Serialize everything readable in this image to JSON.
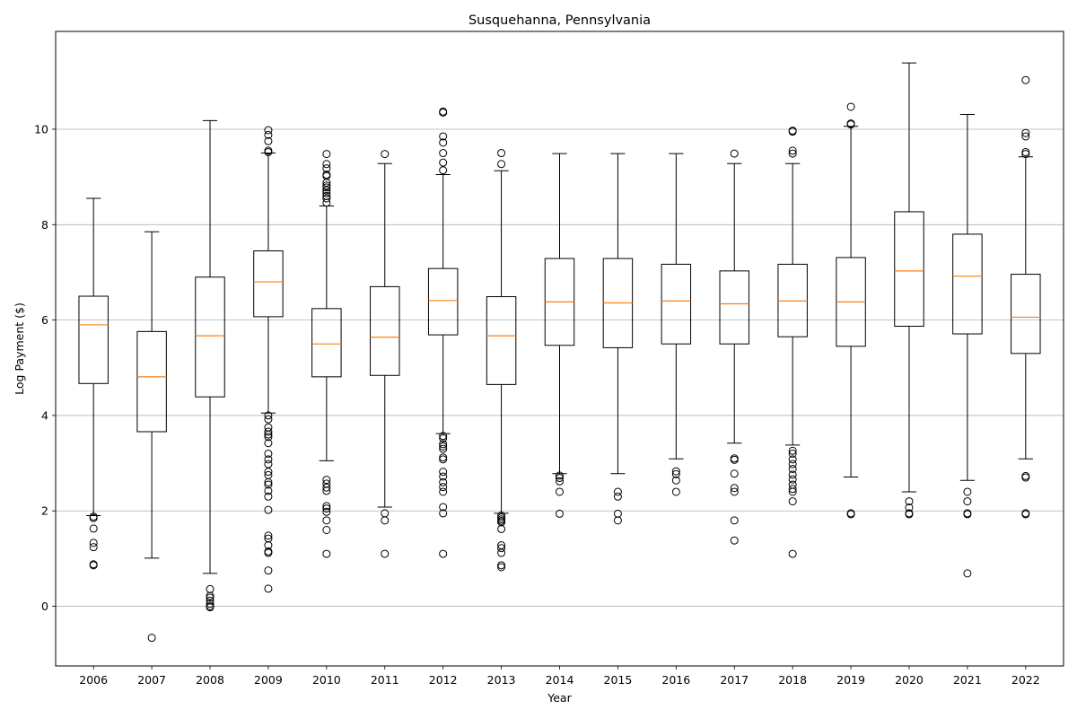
{
  "chart_data": {
    "type": "box",
    "title": "Susquehanna, Pennsylvania",
    "xlabel": "Year",
    "ylabel": "Log Payment ($)",
    "ylim": [
      -1.25,
      12.05
    ],
    "yticks": [
      0,
      2,
      4,
      6,
      8,
      10
    ],
    "ytick_labels": [
      "0",
      "2",
      "4",
      "6",
      "8",
      "10"
    ],
    "grid": "y",
    "box_color": "#000000",
    "median_color": "#ff7f0e",
    "boxes": [
      {
        "label": "2006",
        "whislo": 1.9,
        "q1": 4.67,
        "med": 5.9,
        "q3": 6.5,
        "whishi": 8.55,
        "fliers": [
          1.88,
          1.85,
          1.63,
          1.33,
          1.24,
          0.88,
          0.86
        ]
      },
      {
        "label": "2007",
        "whislo": 1.01,
        "q1": 3.66,
        "med": 4.81,
        "q3": 5.76,
        "whishi": 7.85,
        "fliers": [
          -0.66
        ]
      },
      {
        "label": "2008",
        "whislo": 0.69,
        "q1": 4.39,
        "med": 5.67,
        "q3": 6.9,
        "whishi": 10.18,
        "fliers": [
          0.36,
          0.22,
          0.18,
          0.12,
          0.05,
          0.0,
          -0.02
        ]
      },
      {
        "label": "2009",
        "whislo": 4.05,
        "q1": 6.07,
        "med": 6.8,
        "q3": 7.45,
        "whishi": 9.5,
        "fliers": [
          9.98,
          9.88,
          9.75,
          9.55,
          9.52,
          4.0,
          3.92,
          3.75,
          3.66,
          3.6,
          3.55,
          3.42,
          3.2,
          3.08,
          2.98,
          2.82,
          2.75,
          2.6,
          2.55,
          2.42,
          2.3,
          2.02,
          1.48,
          1.42,
          1.28,
          1.15,
          1.12,
          0.75,
          0.37
        ]
      },
      {
        "label": "2010",
        "whislo": 3.05,
        "q1": 4.81,
        "med": 5.5,
        "q3": 6.24,
        "whishi": 8.39,
        "fliers": [
          9.48,
          9.27,
          9.18,
          9.05,
          9.02,
          8.88,
          8.82,
          8.78,
          8.72,
          8.66,
          8.6,
          8.55,
          8.46,
          2.65,
          2.57,
          2.49,
          2.42,
          2.1,
          2.05,
          1.98,
          1.8,
          1.6,
          1.1
        ]
      },
      {
        "label": "2011",
        "whislo": 2.08,
        "q1": 4.84,
        "med": 5.64,
        "q3": 6.7,
        "whishi": 9.28,
        "fliers": [
          9.48,
          1.95,
          1.8,
          1.1
        ]
      },
      {
        "label": "2012",
        "whislo": 3.62,
        "q1": 5.69,
        "med": 6.41,
        "q3": 7.08,
        "whishi": 9.05,
        "fliers": [
          10.37,
          10.35,
          9.85,
          9.72,
          9.5,
          9.3,
          9.14,
          3.57,
          3.52,
          3.4,
          3.35,
          3.3,
          3.12,
          3.08,
          2.82,
          2.72,
          2.6,
          2.5,
          2.4,
          2.08,
          1.95,
          1.1
        ]
      },
      {
        "label": "2013",
        "whislo": 1.95,
        "q1": 4.65,
        "med": 5.67,
        "q3": 6.49,
        "whishi": 9.13,
        "fliers": [
          9.5,
          9.27,
          1.9,
          1.86,
          1.82,
          1.79,
          1.76,
          1.62,
          1.28,
          1.22,
          1.12,
          0.86,
          0.82
        ]
      },
      {
        "label": "2014",
        "whislo": 2.78,
        "q1": 5.47,
        "med": 6.38,
        "q3": 7.29,
        "whishi": 9.49,
        "fliers": [
          2.74,
          2.69,
          2.62,
          2.4,
          1.94
        ]
      },
      {
        "label": "2015",
        "whislo": 2.78,
        "q1": 5.42,
        "med": 6.36,
        "q3": 7.29,
        "whishi": 9.49,
        "fliers": [
          2.4,
          2.3,
          1.94,
          1.8
        ]
      },
      {
        "label": "2016",
        "whislo": 3.09,
        "q1": 5.5,
        "med": 6.4,
        "q3": 7.17,
        "whishi": 9.49,
        "fliers": [
          2.83,
          2.77,
          2.64,
          2.4
        ]
      },
      {
        "label": "2017",
        "whislo": 3.42,
        "q1": 5.5,
        "med": 6.34,
        "q3": 7.03,
        "whishi": 9.28,
        "fliers": [
          9.49,
          3.1,
          3.07,
          2.78,
          2.48,
          2.4,
          1.8,
          1.38
        ]
      },
      {
        "label": "2018",
        "whislo": 3.38,
        "q1": 5.65,
        "med": 6.4,
        "q3": 7.17,
        "whishi": 9.28,
        "fliers": [
          9.97,
          9.95,
          9.55,
          9.49,
          3.26,
          3.2,
          3.08,
          2.98,
          2.88,
          2.76,
          2.66,
          2.55,
          2.46,
          2.4,
          2.2,
          1.1
        ]
      },
      {
        "label": "2019",
        "whislo": 2.71,
        "q1": 5.45,
        "med": 6.38,
        "q3": 7.31,
        "whishi": 10.06,
        "fliers": [
          10.47,
          10.12,
          10.1,
          1.95,
          1.93
        ]
      },
      {
        "label": "2020",
        "whislo": 2.4,
        "q1": 5.87,
        "med": 7.03,
        "q3": 8.27,
        "whishi": 11.39,
        "fliers": [
          2.2,
          2.07,
          1.95,
          1.93
        ]
      },
      {
        "label": "2021",
        "whislo": 2.64,
        "q1": 5.71,
        "med": 6.92,
        "q3": 7.8,
        "whishi": 10.31,
        "fliers": [
          2.4,
          2.2,
          1.95,
          1.93,
          0.69
        ]
      },
      {
        "label": "2022",
        "whislo": 3.09,
        "q1": 5.3,
        "med": 6.06,
        "q3": 6.96,
        "whishi": 9.42,
        "fliers": [
          11.03,
          9.92,
          9.85,
          9.52,
          9.48,
          2.73,
          2.7,
          1.95,
          1.93
        ]
      }
    ]
  }
}
